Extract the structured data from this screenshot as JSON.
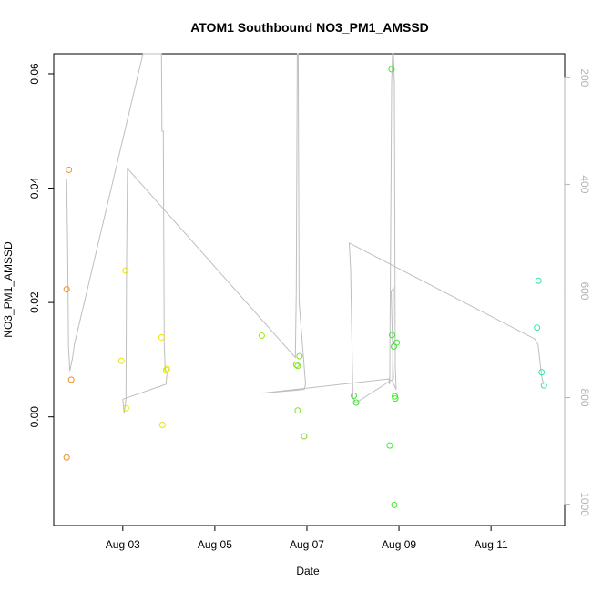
{
  "chart_data": {
    "type": "scatter",
    "title": "ATOM1 Southbound NO3_PM1_AMSSD",
    "xlabel": "Date",
    "ylabel": "NO3_PM1_AMSSD",
    "x_ticks": [
      "Aug 03",
      "Aug 05",
      "Aug 07",
      "Aug 09",
      "Aug 11"
    ],
    "x_tick_values": [
      3,
      5,
      7,
      9,
      11
    ],
    "xlim": [
      1.5,
      12.6
    ],
    "ylim": [
      -0.019,
      0.0635
    ],
    "y_ticks": [
      "0.00",
      "0.02",
      "0.04",
      "0.06"
    ],
    "y_tick_values": [
      0.0,
      0.02,
      0.04,
      0.06
    ],
    "right_axis": {
      "color": "#b3b3b3",
      "ticks": [
        "200",
        "400",
        "600",
        "800",
        "1000"
      ],
      "tick_values": [
        200,
        400,
        600,
        800,
        1000
      ],
      "lim": [
        1040,
        155
      ],
      "reversed": true
    },
    "grid": false,
    "series": [
      {
        "points": [
          {
            "x": 1.78,
            "y": 0.0223,
            "color": "#e8912c"
          },
          {
            "x": 1.83,
            "y": 0.0432,
            "color": "#e8912c"
          },
          {
            "x": 1.78,
            "y": -0.0071,
            "color": "#e8912c"
          },
          {
            "x": 1.88,
            "y": 0.0065,
            "color": "#e8912c"
          },
          {
            "x": 2.97,
            "y": 0.0098,
            "color": "#e6e600"
          },
          {
            "x": 3.06,
            "y": 0.0256,
            "color": "#e6e600"
          },
          {
            "x": 3.07,
            "y": 0.0015,
            "color": "#e6e600"
          },
          {
            "x": 3.84,
            "y": 0.0139,
            "color": "#e6e600"
          },
          {
            "x": 3.86,
            "y": -0.0014,
            "color": "#e6e600"
          },
          {
            "x": 3.94,
            "y": 0.0082,
            "color": "#e6e600"
          },
          {
            "x": 3.96,
            "y": 0.0084,
            "color": "#e6e600"
          },
          {
            "x": 6.02,
            "y": 0.0142,
            "color": "#a0e31a"
          },
          {
            "x": 6.77,
            "y": 0.0091,
            "color": "#7fe020"
          },
          {
            "x": 6.8,
            "y": 0.0089,
            "color": "#7fe020"
          },
          {
            "x": 6.84,
            "y": 0.0106,
            "color": "#7fe020"
          },
          {
            "x": 6.8,
            "y": 0.0011,
            "color": "#7fe020"
          },
          {
            "x": 6.94,
            "y": -0.0034,
            "color": "#7fe020"
          },
          {
            "x": 8.02,
            "y": 0.0037,
            "color": "#3ee62e"
          },
          {
            "x": 8.07,
            "y": 0.0025,
            "color": "#3ee62e"
          },
          {
            "x": 8.84,
            "y": 0.0608,
            "color": "#3ee62e"
          },
          {
            "x": 8.85,
            "y": 0.0143,
            "color": "#3ee62e"
          },
          {
            "x": 8.89,
            "y": 0.0123,
            "color": "#3ee62e"
          },
          {
            "x": 8.95,
            "y": 0.013,
            "color": "#3ee62e"
          },
          {
            "x": 8.91,
            "y": 0.0036,
            "color": "#3ee62e"
          },
          {
            "x": 8.92,
            "y": 0.0032,
            "color": "#3ee62e"
          },
          {
            "x": 8.8,
            "y": -0.005,
            "color": "#3ee62e"
          },
          {
            "x": 8.9,
            "y": -0.0154,
            "color": "#3ee62e"
          },
          {
            "x": 12.03,
            "y": 0.0238,
            "color": "#33e6a8"
          },
          {
            "x": 12.0,
            "y": 0.0156,
            "color": "#33e6a8"
          },
          {
            "x": 12.1,
            "y": 0.0078,
            "color": "#33e6a8"
          },
          {
            "x": 12.15,
            "y": 0.0055,
            "color": "#33e6a8"
          }
        ]
      }
    ],
    "line_series": {
      "axis": "right",
      "color": "#bebebe",
      "points": [
        [
          1.78,
          390
        ],
        [
          1.8,
          510
        ],
        [
          1.82,
          705
        ],
        [
          1.85,
          750
        ],
        [
          1.91,
          725
        ],
        [
          1.95,
          700
        ],
        [
          3.44,
          150
        ],
        [
          3.84,
          150
        ],
        [
          3.85,
          300
        ],
        [
          3.88,
          300
        ],
        [
          3.9,
          700
        ],
        [
          3.92,
          745
        ],
        [
          3.96,
          755
        ],
        [
          3.94,
          775
        ],
        [
          3.0,
          803
        ],
        [
          3.03,
          830
        ],
        [
          3.07,
          803
        ],
        [
          3.08,
          560
        ],
        [
          3.1,
          370
        ],
        [
          6.75,
          725
        ],
        [
          6.77,
          600
        ],
        [
          6.79,
          150
        ],
        [
          6.81,
          150
        ],
        [
          6.83,
          620
        ],
        [
          6.97,
          775
        ],
        [
          6.94,
          785
        ],
        [
          6.02,
          792
        ],
        [
          8.78,
          765
        ],
        [
          8.8,
          775
        ],
        [
          8.84,
          210
        ],
        [
          8.86,
          150
        ],
        [
          8.88,
          150
        ],
        [
          8.9,
          210
        ],
        [
          8.92,
          740
        ],
        [
          8.94,
          785
        ],
        [
          8.86,
          770
        ],
        [
          8.88,
          595
        ],
        [
          8.83,
          600
        ],
        [
          8.88,
          765
        ],
        [
          8.06,
          810
        ],
        [
          8.0,
          800
        ],
        [
          7.95,
          560
        ],
        [
          7.92,
          510
        ],
        [
          11.95,
          690
        ],
        [
          12.02,
          700
        ],
        [
          12.1,
          760
        ],
        [
          12.14,
          775
        ]
      ]
    },
    "annotation_note": ""
  }
}
